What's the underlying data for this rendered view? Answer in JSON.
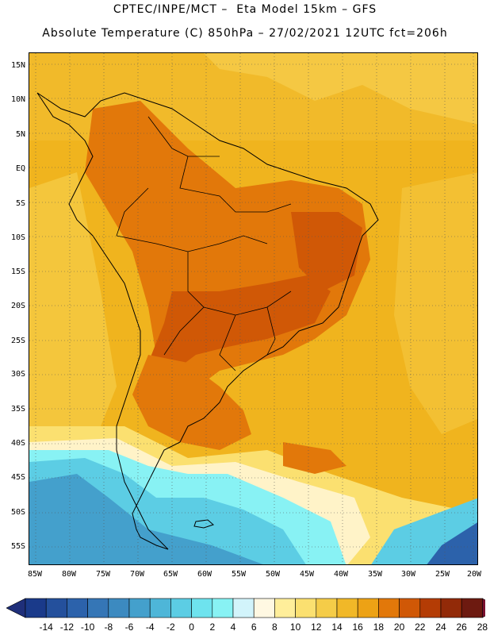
{
  "header": {
    "line1": "CPTEC/INPE/MCT –  Eta Model 15km – GFS",
    "line2": "Absolute Temperature (C) 850hPa – 27/02/2021 12UTC fct=206h"
  },
  "map": {
    "lat_labels": [
      "15N",
      "10N",
      "5N",
      "EQ",
      "5S",
      "10S",
      "15S",
      "20S",
      "25S",
      "30S",
      "35S",
      "40S",
      "45S",
      "50S",
      "55S"
    ],
    "lon_labels": [
      "85W",
      "80W",
      "75W",
      "70W",
      "65W",
      "60W",
      "55W",
      "50W",
      "45W",
      "40W",
      "35W",
      "30W",
      "25W",
      "20W"
    ],
    "dominant_field": "850hPa absolute temperature"
  },
  "colorbar": {
    "labels": [
      "-14",
      "-12",
      "-10",
      "-8",
      "-6",
      "-4",
      "-2",
      "0",
      "2",
      "4",
      "6",
      "8",
      "10",
      "12",
      "14",
      "16",
      "18",
      "20",
      "22",
      "24",
      "26",
      "28"
    ],
    "colors": [
      "#1a3a8a",
      "#24509c",
      "#2c62ab",
      "#3576b6",
      "#3c8ac0",
      "#44a0cc",
      "#4eb6d8",
      "#5ccde4",
      "#6ee3ee",
      "#88f2f4",
      "#d2f4fb",
      "#fff8e2",
      "#ffee9a",
      "#fbe070",
      "#f5cc48",
      "#f1b828",
      "#eda215",
      "#e2780a",
      "#d05806",
      "#b43c05",
      "#922a08",
      "#6d1a10"
    ],
    "low_arrow": "#1f2f7a",
    "high_arrow": "#7a0f2e"
  }
}
